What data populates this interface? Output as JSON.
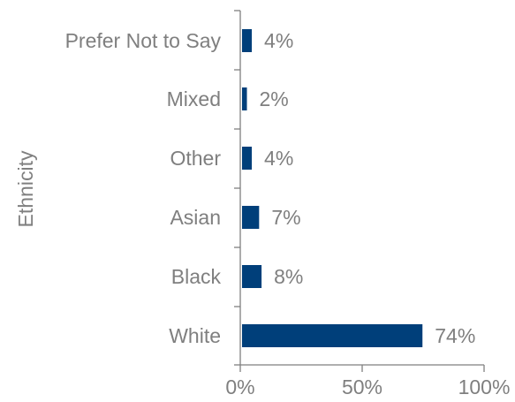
{
  "chart_data": {
    "type": "bar",
    "orientation": "horizontal",
    "title": "",
    "ylabel": "Ethnicity",
    "xlabel": "",
    "categories": [
      "Prefer Not to Say",
      "Mixed",
      "Other",
      "Asian",
      "Black",
      "White"
    ],
    "values": [
      4,
      2,
      4,
      7,
      8,
      74
    ],
    "value_labels": [
      "4%",
      "2%",
      "4%",
      "7%",
      "8%",
      "74%"
    ],
    "xlim": [
      0,
      100
    ],
    "xticks": [
      0,
      50,
      100
    ],
    "xtick_labels": [
      "0%",
      "50%",
      "100%"
    ],
    "grid": false,
    "legend": "none",
    "colors": {
      "bar": "#003f7a",
      "text": "#7f7f7f",
      "axis": "#7f7f7f"
    }
  }
}
